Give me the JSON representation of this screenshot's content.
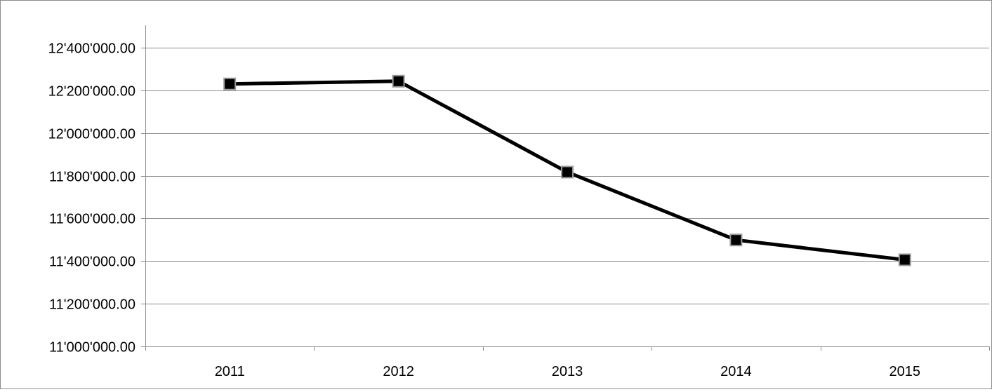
{
  "chart_data": {
    "type": "line",
    "title": "",
    "xlabel": "",
    "ylabel": "",
    "categories": [
      "2011",
      "2012",
      "2013",
      "2014",
      "2015"
    ],
    "series": [
      {
        "values": [
          12230000,
          12243000,
          11817000,
          11499000,
          11406000
        ]
      }
    ],
    "ylim": [
      11000000,
      12400000
    ],
    "y_ticks": [
      11000000,
      11200000,
      11400000,
      11600000,
      11800000,
      12000000,
      12200000,
      12400000
    ],
    "y_tick_labels": [
      "11'000'000.00",
      "11'200'000.00",
      "11'400'000.00",
      "11'600'000.00",
      "11'800'000.00",
      "12'000'000.00",
      "12'200'000.00",
      "12'400'000.00"
    ],
    "grid": "horizontal",
    "legend": "none",
    "colors": {
      "line": "#000000",
      "marker_fill": "#000000",
      "marker_border": "#9a9a9a",
      "grid": "#8c8c8c",
      "axis": "#8c8c8c"
    }
  }
}
